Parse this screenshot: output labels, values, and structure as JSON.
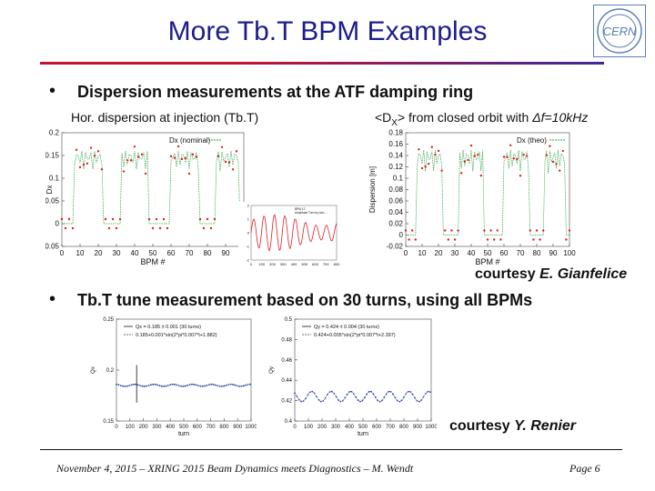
{
  "slide": {
    "title": "More Tb.T BPM Examples",
    "logo_text": "CERN",
    "bullets": [
      {
        "marker": "•",
        "text": "Dispersion measurements at the ATF damping ring"
      },
      {
        "marker": "•",
        "text": "Tb.T tune measurement based on 30 turns, using all BPMs"
      }
    ],
    "sub_captions": {
      "left": "Hor. dispersion at injection (Tb.T)",
      "right_prefix": "<D",
      "right_subscript": "X",
      "right_suffix": "> from closed orbit with ",
      "right_italic": "Δf=10kHz"
    },
    "courtesy_1": {
      "prefix": "courtesy ",
      "name": "E. Gianfelice"
    },
    "courtesy_2": {
      "prefix": "courtesy ",
      "name": "Y. Renier"
    },
    "footer": {
      "left": "November 4, 2015 – XRING 2015 Beam Dynamics meets Diagnostics – M. Wendt",
      "right": "Page  6"
    },
    "colors": {
      "title": "#1c1c8c",
      "accent_red": "#c8102e",
      "accent_blue": "#3b2a9a",
      "logo": "#5b7fb8"
    }
  },
  "chart_data": [
    {
      "type": "scatter",
      "ylabel": "Dx",
      "xlabel": "BPM #",
      "legend": "Dx (nominal)",
      "ylim": [
        -0.05,
        0.2
      ],
      "xlim": [
        0,
        100
      ],
      "xticks": [
        "0",
        "10",
        "20",
        "30",
        "40",
        "50",
        "60",
        "70",
        "80",
        "90",
        "100"
      ],
      "yticks": [
        "-0.05",
        "0",
        "0.05",
        "0.1",
        "0.15",
        "0.2"
      ],
      "series": [
        {
          "name": "Dx (nominal)",
          "color": "#2ea043"
        }
      ]
    },
    {
      "type": "line",
      "note": "inset: turn-by-turn oscillation",
      "xticks": [
        "0",
        "100",
        "200",
        "300",
        "400",
        "500",
        "600",
        "700",
        "800"
      ],
      "yticks": [
        "-2",
        "-1",
        "0",
        "1",
        "2"
      ],
      "legend_lines": [
        "BPM 12",
        "Amplitude Turn-by-turn ..."
      ]
    },
    {
      "type": "scatter",
      "ylabel": "Dispersion [m]",
      "xlabel": "BPM #",
      "legend": "Dx (theo)",
      "ylim": [
        -0.02,
        0.18
      ],
      "xlim": [
        0,
        100
      ],
      "xticks": [
        "0",
        "10",
        "20",
        "30",
        "40",
        "50",
        "60",
        "70",
        "80",
        "90",
        "100"
      ],
      "yticks": [
        "-0.02",
        "0",
        "0.02",
        "0.04",
        "0.06",
        "0.08",
        "0.1",
        "0.12",
        "0.14",
        "0.16",
        "0.18"
      ],
      "series": [
        {
          "name": "Dx (theo)",
          "color": "#2ea043"
        }
      ]
    },
    {
      "type": "line",
      "ylabel": "Qx",
      "xlabel": "turn",
      "ylim": [
        0.15,
        0.25
      ],
      "xlim": [
        0,
        1000
      ],
      "xticks": [
        "0",
        "100",
        "200",
        "300",
        "400",
        "500",
        "600",
        "700",
        "800",
        "900",
        "1000"
      ],
      "yticks": [
        "0.15",
        "0.2",
        "0.25"
      ],
      "legend_lines": [
        "Qx = 0.185 ± 0.001 (30 turns)",
        "0.185+0.001*sin(2*pi*0.007*t+1.882)"
      ]
    },
    {
      "type": "line",
      "ylabel": "Qy",
      "xlabel": "turn",
      "ylim": [
        0.4,
        0.5
      ],
      "xlim": [
        0,
        1000
      ],
      "xticks": [
        "0",
        "100",
        "200",
        "300",
        "400",
        "500",
        "600",
        "700",
        "800",
        "900",
        "1000"
      ],
      "yticks": [
        "0.4",
        "0.42",
        "0.44",
        "0.46",
        "0.48",
        "0.5"
      ],
      "legend_lines": [
        "Qy = 0.424 ± 0.004 (30 turns)",
        "0.424+0.005*sin(2*pi*0.007*t+2.397)"
      ]
    }
  ]
}
